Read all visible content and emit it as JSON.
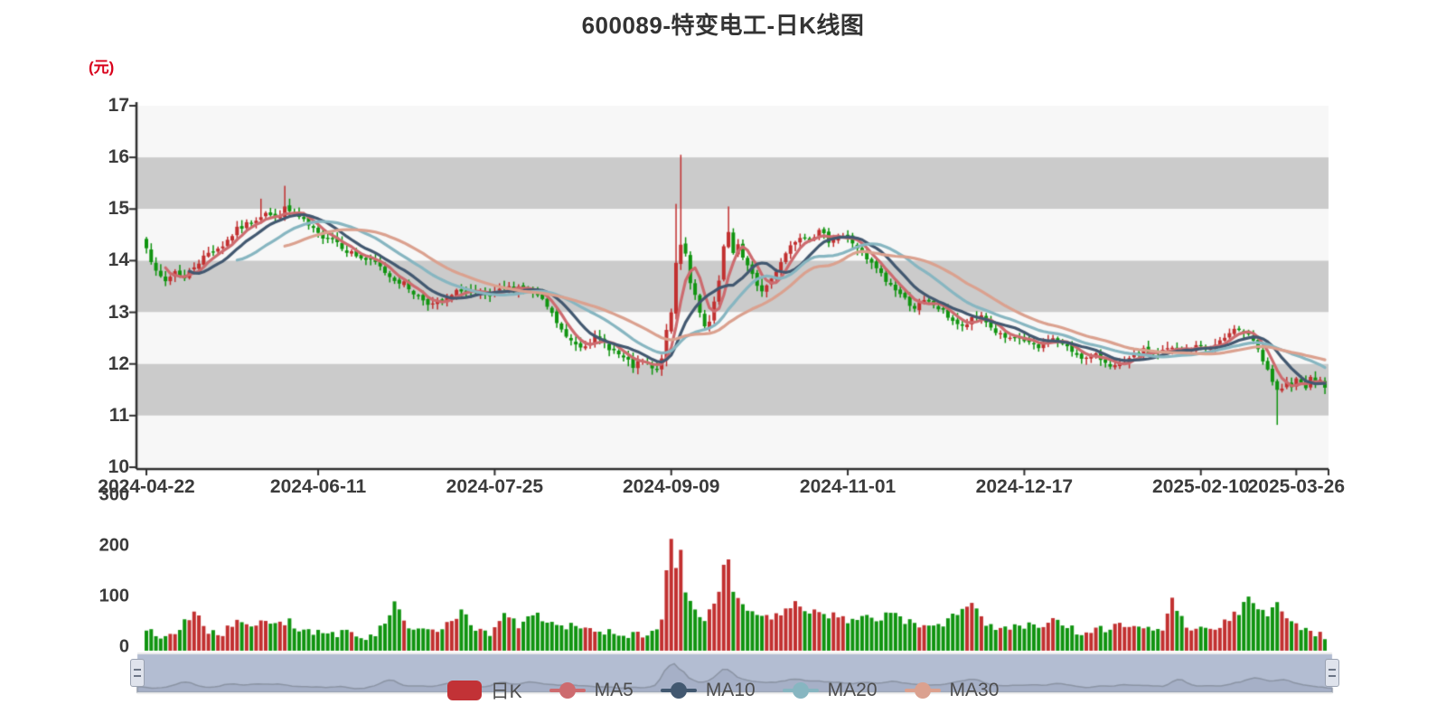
{
  "title": "600089-特变电工-日K线图",
  "y_axis": {
    "unit": "(元)",
    "min": 10,
    "max": 17,
    "ticks": [
      17,
      16,
      15,
      14,
      13,
      12,
      11,
      10
    ]
  },
  "x_axis": {
    "labels": [
      "2024-04-22",
      "2024-06-11",
      "2024-07-25",
      "2024-09-09",
      "2024-11-01",
      "2024-12-17",
      "2025-02-10",
      "2025-03-26"
    ],
    "label_bar_indices": [
      0,
      36,
      73,
      110,
      147,
      184,
      221,
      241
    ]
  },
  "volume_axis": {
    "ticks": [
      300,
      200,
      100,
      0
    ]
  },
  "legend": [
    {
      "label": "日K",
      "type": "rect",
      "color": "#c23236"
    },
    {
      "label": "MA5",
      "type": "line",
      "color": "#cd6b6f"
    },
    {
      "label": "MA10",
      "type": "line",
      "color": "#425870"
    },
    {
      "label": "MA20",
      "type": "line",
      "color": "#87b6c1"
    },
    {
      "label": "MA30",
      "type": "line",
      "color": "#dba18f"
    }
  ],
  "colors": {
    "background": "#ffffff",
    "up": "#c23030",
    "down": "#109410",
    "stripe_light": "#f7f7f7",
    "stripe_dark": "#cbcbcb",
    "axis": "#2f2f2f",
    "tick_label": "#3b3b3b",
    "title": "#333333",
    "unit_label": "#d9001b",
    "legend_text": "#4d4d4d",
    "nav_bg": "#b3bdd2",
    "nav_fill": "#a6b0c7",
    "nav_line": "#8b94a4",
    "nav_border": "#ececec"
  },
  "chart_data": {
    "type": "candlestick",
    "title": "600089-特变电工-日K线图",
    "ylabel": "(元)",
    "bar_count": 248,
    "ylim": [
      10,
      17
    ],
    "volume_ylim": [
      0,
      300
    ],
    "grid": "striped-bands",
    "legend_position": "bottom",
    "ma_periods": [
      5,
      10,
      20,
      30
    ],
    "seed": 7,
    "close_keypoints": [
      [
        0,
        14.3
      ],
      [
        2,
        13.75
      ],
      [
        4,
        13.6
      ],
      [
        6,
        13.8
      ],
      [
        8,
        13.65
      ],
      [
        10,
        13.9
      ],
      [
        13,
        14.15
      ],
      [
        16,
        14.3
      ],
      [
        19,
        14.6
      ],
      [
        22,
        14.75
      ],
      [
        25,
        14.95
      ],
      [
        27,
        14.8
      ],
      [
        29,
        15.0
      ],
      [
        31,
        14.9
      ],
      [
        33,
        14.75
      ],
      [
        36,
        14.5
      ],
      [
        39,
        14.45
      ],
      [
        42,
        14.2
      ],
      [
        45,
        14.05
      ],
      [
        48,
        13.95
      ],
      [
        51,
        13.7
      ],
      [
        54,
        13.55
      ],
      [
        57,
        13.3
      ],
      [
        60,
        13.15
      ],
      [
        63,
        13.25
      ],
      [
        66,
        13.45
      ],
      [
        69,
        13.35
      ],
      [
        72,
        13.3
      ],
      [
        75,
        13.45
      ],
      [
        78,
        13.5
      ],
      [
        81,
        13.4
      ],
      [
        84,
        13.1
      ],
      [
        86,
        12.8
      ],
      [
        88,
        12.5
      ],
      [
        91,
        12.35
      ],
      [
        94,
        12.5
      ],
      [
        96,
        12.4
      ],
      [
        98,
        12.25
      ],
      [
        100,
        12.1
      ],
      [
        102,
        11.95
      ],
      [
        104,
        12.05
      ],
      [
        106,
        11.9
      ],
      [
        107,
        11.85
      ],
      [
        108,
        12.15
      ],
      [
        109,
        12.6
      ],
      [
        110,
        13.0
      ],
      [
        111,
        13.95
      ],
      [
        112,
        14.35
      ],
      [
        113,
        14.15
      ],
      [
        114,
        13.6
      ],
      [
        115,
        13.3
      ],
      [
        116,
        12.95
      ],
      [
        117,
        12.7
      ],
      [
        118,
        12.8
      ],
      [
        119,
        13.15
      ],
      [
        120,
        13.6
      ],
      [
        121,
        14.25
      ],
      [
        122,
        14.5
      ],
      [
        123,
        14.15
      ],
      [
        124,
        14.35
      ],
      [
        125,
        14.05
      ],
      [
        127,
        13.7
      ],
      [
        129,
        13.4
      ],
      [
        131,
        13.65
      ],
      [
        133,
        14.0
      ],
      [
        135,
        14.3
      ],
      [
        137,
        14.5
      ],
      [
        139,
        14.45
      ],
      [
        141,
        14.55
      ],
      [
        143,
        14.4
      ],
      [
        145,
        14.5
      ],
      [
        147,
        14.45
      ],
      [
        149,
        14.25
      ],
      [
        151,
        14.0
      ],
      [
        153,
        13.85
      ],
      [
        155,
        13.6
      ],
      [
        157,
        13.45
      ],
      [
        159,
        13.25
      ],
      [
        161,
        13.1
      ],
      [
        163,
        13.2
      ],
      [
        165,
        13.15
      ],
      [
        167,
        13.0
      ],
      [
        169,
        12.85
      ],
      [
        171,
        12.7
      ],
      [
        173,
        12.85
      ],
      [
        175,
        12.95
      ],
      [
        177,
        12.7
      ],
      [
        179,
        12.55
      ],
      [
        181,
        12.45
      ],
      [
        183,
        12.5
      ],
      [
        185,
        12.4
      ],
      [
        187,
        12.3
      ],
      [
        189,
        12.5
      ],
      [
        191,
        12.45
      ],
      [
        193,
        12.3
      ],
      [
        195,
        12.2
      ],
      [
        197,
        12.1
      ],
      [
        199,
        12.15
      ],
      [
        201,
        12.05
      ],
      [
        203,
        11.95
      ],
      [
        205,
        12.0
      ],
      [
        207,
        12.15
      ],
      [
        209,
        12.25
      ],
      [
        211,
        12.2
      ],
      [
        213,
        12.25
      ],
      [
        215,
        12.3
      ],
      [
        217,
        12.25
      ],
      [
        219,
        12.3
      ],
      [
        221,
        12.35
      ],
      [
        223,
        12.3
      ],
      [
        225,
        12.45
      ],
      [
        227,
        12.55
      ],
      [
        229,
        12.7
      ],
      [
        231,
        12.6
      ],
      [
        233,
        12.3
      ],
      [
        234,
        12.0
      ],
      [
        235,
        11.85
      ],
      [
        236,
        11.65
      ],
      [
        237,
        11.45
      ],
      [
        238,
        11.55
      ],
      [
        239,
        11.65
      ],
      [
        240,
        11.5
      ],
      [
        241,
        11.7
      ],
      [
        242,
        11.6
      ],
      [
        243,
        11.55
      ],
      [
        244,
        11.7
      ],
      [
        245,
        11.6
      ],
      [
        246,
        11.65
      ],
      [
        247,
        11.6
      ]
    ],
    "volume_keypoints": [
      [
        0,
        45
      ],
      [
        3,
        30
      ],
      [
        6,
        35
      ],
      [
        10,
        75
      ],
      [
        13,
        40
      ],
      [
        16,
        35
      ],
      [
        19,
        55
      ],
      [
        22,
        45
      ],
      [
        24,
        60
      ],
      [
        27,
        50
      ],
      [
        30,
        55
      ],
      [
        33,
        40
      ],
      [
        36,
        35
      ],
      [
        39,
        30
      ],
      [
        42,
        35
      ],
      [
        45,
        28
      ],
      [
        48,
        30
      ],
      [
        52,
        88
      ],
      [
        55,
        45
      ],
      [
        58,
        35
      ],
      [
        62,
        40
      ],
      [
        66,
        75
      ],
      [
        69,
        40
      ],
      [
        72,
        35
      ],
      [
        75,
        70
      ],
      [
        78,
        50
      ],
      [
        81,
        75
      ],
      [
        84,
        55
      ],
      [
        88,
        45
      ],
      [
        91,
        50
      ],
      [
        94,
        40
      ],
      [
        98,
        35
      ],
      [
        102,
        30
      ],
      [
        106,
        35
      ],
      [
        108,
        55
      ],
      [
        109,
        150
      ],
      [
        110,
        215
      ],
      [
        111,
        165
      ],
      [
        112,
        195
      ],
      [
        113,
        120
      ],
      [
        114,
        90
      ],
      [
        115,
        75
      ],
      [
        117,
        65
      ],
      [
        119,
        85
      ],
      [
        120,
        120
      ],
      [
        121,
        170
      ],
      [
        122,
        175
      ],
      [
        123,
        120
      ],
      [
        125,
        90
      ],
      [
        127,
        70
      ],
      [
        129,
        65
      ],
      [
        131,
        60
      ],
      [
        133,
        70
      ],
      [
        136,
        95
      ],
      [
        139,
        70
      ],
      [
        141,
        80
      ],
      [
        143,
        65
      ],
      [
        145,
        70
      ],
      [
        147,
        60
      ],
      [
        149,
        55
      ],
      [
        151,
        65
      ],
      [
        153,
        50
      ],
      [
        156,
        75
      ],
      [
        159,
        55
      ],
      [
        162,
        50
      ],
      [
        165,
        45
      ],
      [
        168,
        55
      ],
      [
        171,
        85
      ],
      [
        173,
        95
      ],
      [
        175,
        60
      ],
      [
        178,
        45
      ],
      [
        181,
        40
      ],
      [
        184,
        50
      ],
      [
        187,
        40
      ],
      [
        190,
        55
      ],
      [
        193,
        45
      ],
      [
        196,
        35
      ],
      [
        199,
        40
      ],
      [
        202,
        45
      ],
      [
        204,
        50
      ],
      [
        207,
        40
      ],
      [
        210,
        45
      ],
      [
        213,
        35
      ],
      [
        215,
        100
      ],
      [
        218,
        45
      ],
      [
        221,
        50
      ],
      [
        224,
        40
      ],
      [
        227,
        65
      ],
      [
        229,
        75
      ],
      [
        231,
        105
      ],
      [
        233,
        80
      ],
      [
        235,
        70
      ],
      [
        237,
        90
      ],
      [
        239,
        60
      ],
      [
        241,
        55
      ],
      [
        243,
        40
      ],
      [
        245,
        35
      ],
      [
        247,
        30
      ]
    ],
    "overrides": {
      "24": {
        "high": 15.2
      },
      "29": {
        "high": 15.45
      },
      "111": {
        "high": 15.1
      },
      "112": {
        "high": 16.05
      },
      "122": {
        "high": 15.05
      },
      "237": {
        "low": 10.82
      }
    }
  }
}
